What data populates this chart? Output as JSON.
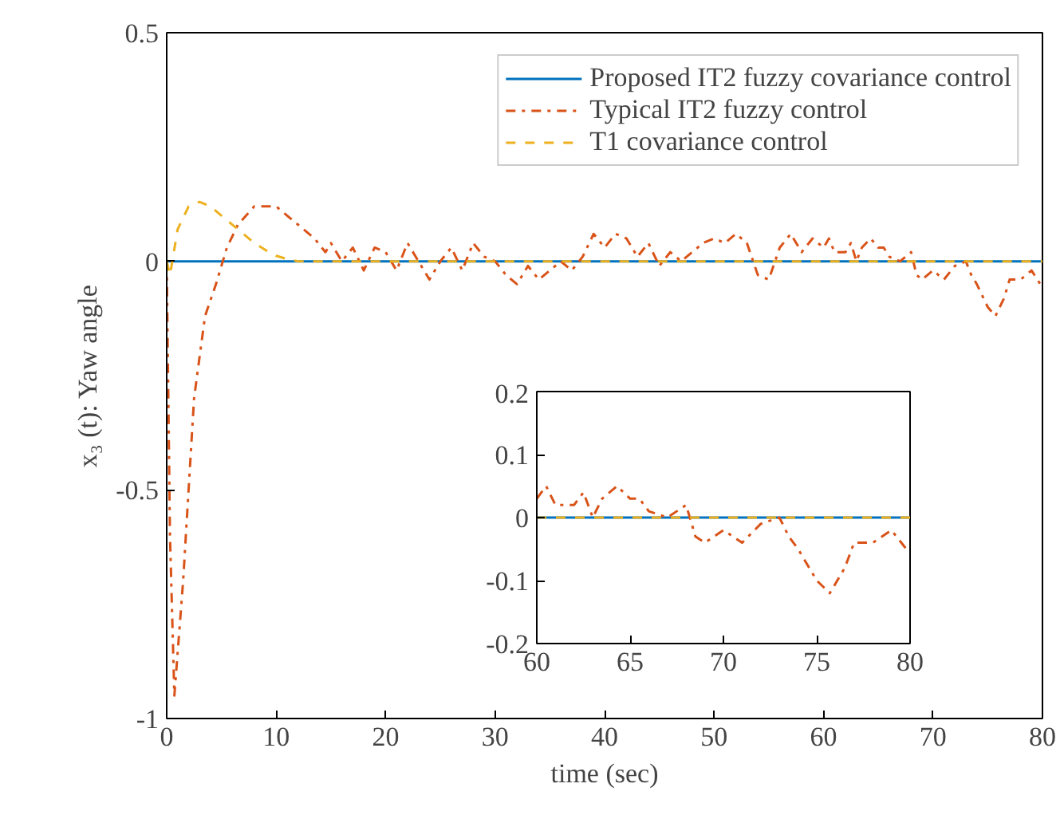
{
  "chart_data": [
    {
      "type": "line",
      "xlabel": "time (sec)",
      "ylabel": "x₃ (t): Yaw angle",
      "xlim": [
        0,
        80
      ],
      "ylim": [
        -1,
        0.5
      ],
      "xticks": [
        0,
        10,
        20,
        30,
        40,
        50,
        60,
        70,
        80
      ],
      "yticks": [
        -1,
        -0.5,
        0,
        0.5
      ],
      "grid": false,
      "legend": "top right",
      "series": [
        {
          "name": "Proposed IT2 fuzzy covariance control",
          "color": "#0072bd",
          "line_style": "solid",
          "x": [
            0,
            80
          ],
          "values": [
            0,
            0
          ]
        },
        {
          "name": "Typical IT2 fuzzy control",
          "color": "#d95319",
          "line_style": "dashdot",
          "x": [
            0,
            0.3,
            0.7,
            1.5,
            2.5,
            3.5,
            4.5,
            5.5,
            6.5,
            8,
            10,
            11,
            12.5,
            13.5,
            14.5,
            15,
            16,
            17,
            18,
            19,
            20,
            21,
            22,
            23,
            24,
            25,
            26,
            27,
            28,
            29,
            30,
            31,
            32,
            33,
            34,
            35,
            36,
            37,
            38,
            39,
            40,
            41,
            42,
            43,
            44,
            45,
            46,
            47,
            48,
            49,
            50,
            51,
            52,
            53,
            54,
            55,
            56,
            57,
            58,
            59,
            60,
            60.5,
            61,
            62,
            62.5,
            63,
            63.5,
            64.3,
            65,
            65.5,
            66,
            67,
            68,
            68.5,
            69,
            70,
            71,
            72,
            73,
            73.5,
            74,
            75,
            75.7,
            76.5,
            77,
            78,
            79,
            79.8
          ],
          "values": [
            0,
            -0.6,
            -0.95,
            -0.7,
            -0.3,
            -0.12,
            -0.05,
            0.03,
            0.08,
            0.12,
            0.12,
            0.1,
            0.07,
            0.05,
            0.02,
            0.04,
            0.0,
            0.03,
            -0.02,
            0.03,
            0.02,
            -0.02,
            0.04,
            0.0,
            -0.04,
            0.0,
            0.03,
            -0.02,
            0.04,
            0.01,
            0.0,
            -0.03,
            -0.05,
            -0.01,
            -0.04,
            -0.02,
            0.0,
            -0.02,
            0.01,
            0.06,
            0.03,
            0.06,
            0.05,
            0.01,
            0.04,
            -0.01,
            0.02,
            0.0,
            0.02,
            0.04,
            0.05,
            0.04,
            0.06,
            0.04,
            -0.03,
            -0.04,
            0.03,
            0.06,
            0.02,
            0.05,
            0.03,
            0.05,
            0.02,
            0.02,
            0.04,
            0.0,
            0.03,
            0.05,
            0.03,
            0.03,
            0.01,
            0.0,
            0.02,
            -0.03,
            -0.04,
            -0.02,
            -0.04,
            -0.01,
            0.0,
            -0.03,
            -0.05,
            -0.1,
            -0.12,
            -0.08,
            -0.04,
            -0.04,
            -0.02,
            -0.05
          ]
        },
        {
          "name": "T1 covariance control",
          "color": "#edb120",
          "line_style": "dashed",
          "x": [
            0,
            0.3,
            1,
            2,
            3,
            4,
            5,
            6,
            7,
            8,
            9,
            10,
            11,
            12,
            80
          ],
          "values": [
            0,
            -0.03,
            0.07,
            0.12,
            0.13,
            0.12,
            0.1,
            0.08,
            0.06,
            0.04,
            0.025,
            0.012,
            0.005,
            0,
            0
          ]
        }
      ]
    },
    {
      "type": "line",
      "xlim": [
        60,
        80
      ],
      "ylim": [
        -0.2,
        0.2
      ],
      "xticks": [
        60,
        65,
        70,
        75,
        80
      ],
      "yticks": [
        -0.2,
        -0.1,
        0,
        0.1,
        0.2
      ],
      "grid": false,
      "legend": false,
      "series": [
        {
          "color": "#0072bd",
          "line_style": "solid",
          "x": [
            60,
            80
          ],
          "values": [
            0,
            0
          ]
        },
        {
          "color": "#d95319",
          "line_style": "dashdot",
          "x": [
            60,
            60.5,
            61,
            62,
            62.5,
            63,
            63.5,
            64.3,
            65,
            65.5,
            66,
            67,
            68,
            68.5,
            69,
            70,
            71,
            72,
            73,
            73.5,
            74,
            75,
            75.7,
            76.5,
            77,
            78,
            79,
            79.8
          ],
          "values": [
            0.03,
            0.05,
            0.02,
            0.02,
            0.04,
            0.0,
            0.03,
            0.05,
            0.03,
            0.03,
            0.01,
            0.0,
            0.02,
            -0.03,
            -0.04,
            -0.02,
            -0.04,
            -0.01,
            0.0,
            -0.03,
            -0.05,
            -0.1,
            -0.12,
            -0.08,
            -0.04,
            -0.04,
            -0.02,
            -0.05
          ]
        },
        {
          "color": "#edb120",
          "line_style": "dashed",
          "x": [
            60,
            80
          ],
          "values": [
            0,
            0
          ]
        }
      ]
    }
  ]
}
